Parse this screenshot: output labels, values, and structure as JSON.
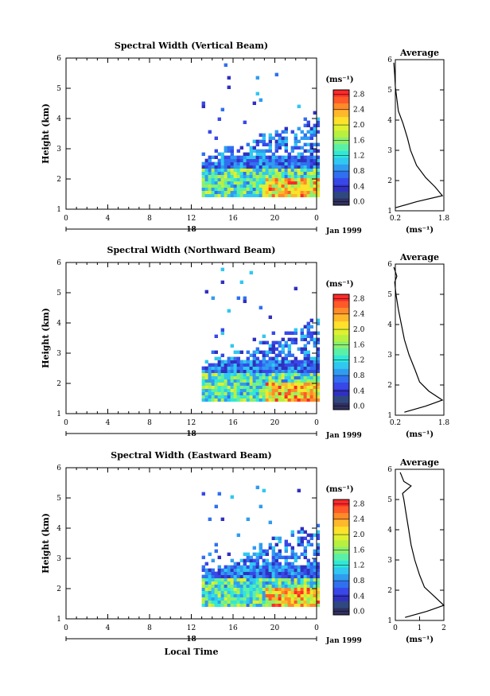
{
  "figure": {
    "xaxis_label": "Local Time",
    "date_label": "Jan 1999",
    "day_label": "18"
  },
  "colorbar": {
    "unit": "(ms⁻¹)",
    "ticks": [
      "2.8",
      "2.4",
      "2.0",
      "1.6",
      "1.2",
      "0.8",
      "0.4",
      "0.0"
    ],
    "colors": [
      "#ff2a2a",
      "#ff5a28",
      "#ff8a2a",
      "#ffb82a",
      "#ffe02a",
      "#e0f030",
      "#b8f040",
      "#8af070",
      "#5af0a8",
      "#30e8d8",
      "#30c8f0",
      "#309cf0",
      "#3070f0",
      "#3848e8",
      "#3030c0",
      "#304880",
      "#303060"
    ]
  },
  "chart_data": [
    {
      "type": "heatmap",
      "title": "Spectral Width (Vertical Beam)",
      "xlabel": "",
      "ylabel": "Height (km)",
      "x_ticks": [
        "0",
        "4",
        "8",
        "12",
        "16",
        "20",
        "0"
      ],
      "y_ticks": [
        "1",
        "2",
        "3",
        "4",
        "5",
        "6"
      ],
      "xlim": [
        0,
        24
      ],
      "ylim": [
        1,
        6
      ],
      "colorbar_range": [
        0.0,
        3.0
      ],
      "profile": {
        "title": "Average",
        "xlabel": "(ms⁻¹)",
        "x_ticks": [
          "0.2",
          "1.8"
        ],
        "xlim": [
          0.2,
          1.8
        ],
        "y_ticks": [
          "1",
          "2",
          "3",
          "4",
          "5",
          "6"
        ],
        "ylim": [
          1,
          6
        ],
        "values": [
          [
            0.2,
            1.1
          ],
          [
            0.9,
            1.3
          ],
          [
            1.75,
            1.5
          ],
          [
            1.5,
            1.8
          ],
          [
            1.2,
            2.1
          ],
          [
            0.9,
            2.5
          ],
          [
            0.7,
            3.0
          ],
          [
            0.6,
            3.4
          ],
          [
            0.45,
            3.9
          ],
          [
            0.3,
            4.3
          ],
          [
            0.25,
            4.7
          ],
          [
            0.2,
            5.1
          ],
          [
            0.18,
            5.5
          ],
          [
            0.15,
            5.9
          ]
        ]
      },
      "data": {
        "time_range": [
          13,
          24
        ],
        "height_range": [
          1.2,
          5.8
        ],
        "note": ""
      }
    },
    {
      "type": "heatmap",
      "title": "Spectral Width (Northward Beam)",
      "xlabel": "",
      "ylabel": "Height (km)",
      "x_ticks": [
        "0",
        "4",
        "8",
        "12",
        "16",
        "20",
        "0"
      ],
      "y_ticks": [
        "1",
        "2",
        "3",
        "4",
        "5",
        "6"
      ],
      "xlim": [
        0,
        24
      ],
      "ylim": [
        1,
        6
      ],
      "colorbar_range": [
        0.0,
        3.0
      ],
      "profile": {
        "title": "Average",
        "xlabel": "(ms⁻¹)",
        "x_ticks": [
          "0.2",
          "1.8"
        ],
        "xlim": [
          0.2,
          1.8
        ],
        "y_ticks": [
          "1",
          "2",
          "3",
          "4",
          "5",
          "6"
        ],
        "ylim": [
          1,
          6
        ],
        "values": [
          [
            0.5,
            1.1
          ],
          [
            1.2,
            1.3
          ],
          [
            1.75,
            1.5
          ],
          [
            1.3,
            1.8
          ],
          [
            1.0,
            2.1
          ],
          [
            0.85,
            2.5
          ],
          [
            0.65,
            3.0
          ],
          [
            0.5,
            3.5
          ],
          [
            0.4,
            4.0
          ],
          [
            0.3,
            4.5
          ],
          [
            0.22,
            5.0
          ],
          [
            0.18,
            5.4
          ],
          [
            0.25,
            5.6
          ],
          [
            0.15,
            5.9
          ]
        ]
      }
    },
    {
      "type": "heatmap",
      "title": "Spectral Width (Eastward Beam)",
      "xlabel": "Local Time",
      "ylabel": "Height (km)",
      "x_ticks": [
        "0",
        "4",
        "8",
        "12",
        "16",
        "20",
        "0"
      ],
      "y_ticks": [
        "1",
        "2",
        "3",
        "4",
        "5",
        "6"
      ],
      "xlim": [
        0,
        24
      ],
      "ylim": [
        1,
        6
      ],
      "colorbar_range": [
        0.0,
        3.0
      ],
      "profile": {
        "title": "Average",
        "xlabel": "(ms⁻¹)",
        "x_ticks": [
          "0",
          "1",
          "2"
        ],
        "xlim": [
          0,
          2
        ],
        "y_ticks": [
          "1",
          "2",
          "3",
          "4",
          "5",
          "6"
        ],
        "ylim": [
          1,
          6
        ],
        "values": [
          [
            0.4,
            1.1
          ],
          [
            1.3,
            1.3
          ],
          [
            2.0,
            1.5
          ],
          [
            1.6,
            1.8
          ],
          [
            1.2,
            2.1
          ],
          [
            1.0,
            2.5
          ],
          [
            0.8,
            3.0
          ],
          [
            0.65,
            3.5
          ],
          [
            0.55,
            4.0
          ],
          [
            0.45,
            4.5
          ],
          [
            0.35,
            5.0
          ],
          [
            0.3,
            5.2
          ],
          [
            0.65,
            5.45
          ],
          [
            0.35,
            5.6
          ],
          [
            0.2,
            5.9
          ]
        ]
      }
    }
  ]
}
